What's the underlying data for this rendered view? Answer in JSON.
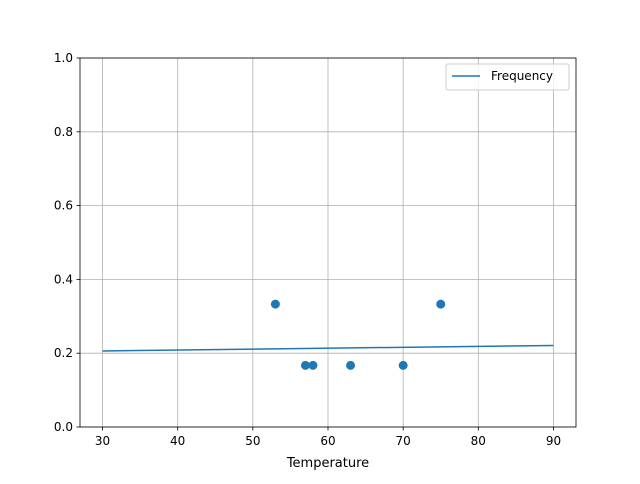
{
  "chart_data": {
    "type": "scatter",
    "title": "",
    "xlabel": "Temperature",
    "ylabel": "",
    "xlim": [
      27,
      93
    ],
    "ylim": [
      0,
      1.0
    ],
    "grid": true,
    "legend_position": "top-right",
    "x_ticks": [
      "30",
      "40",
      "50",
      "60",
      "70",
      "80",
      "90"
    ],
    "y_ticks": [
      "0.0",
      "0.2",
      "0.4",
      "0.6",
      "0.8",
      "1.0"
    ],
    "color": "#1f77b4",
    "scatter": {
      "x": [
        53,
        57,
        58,
        63,
        70,
        75
      ],
      "y": [
        0.333,
        0.167,
        0.167,
        0.167,
        0.167,
        0.333
      ]
    },
    "series": [
      {
        "name": "Frequency",
        "type": "line",
        "x": [
          30,
          90
        ],
        "y": [
          0.206,
          0.221
        ]
      }
    ]
  }
}
